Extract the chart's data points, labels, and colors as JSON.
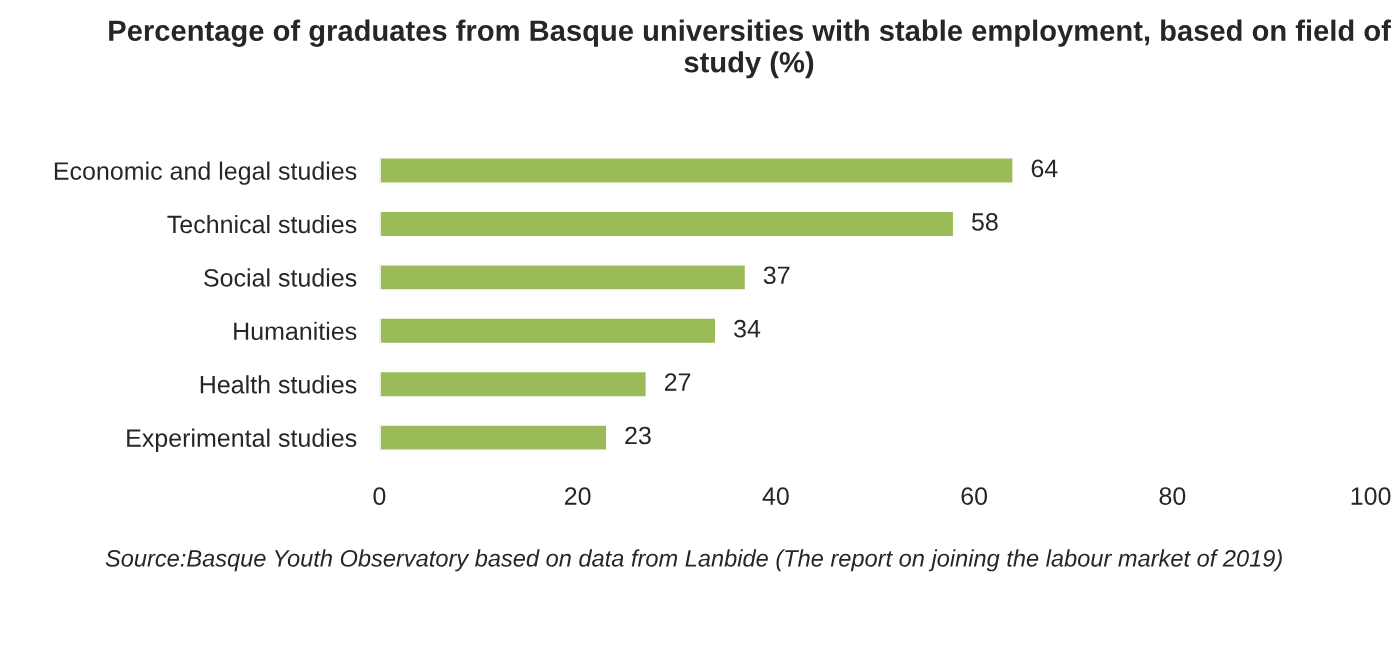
{
  "chart_data": {
    "type": "bar",
    "orientation": "horizontal",
    "title": "Percentage of graduates from Basque universities with stable employment, based on field of study (%)",
    "categories": [
      "Economic and legal studies",
      "Technical studies",
      "Social studies",
      "Humanities",
      "Health studies",
      "Experimental studies"
    ],
    "values": [
      64,
      58,
      37,
      34,
      27,
      23
    ],
    "color": "#9bbb59",
    "xlim": [
      0,
      100
    ],
    "xticks": [
      0,
      20,
      40,
      60,
      80,
      100
    ],
    "data_labels": true,
    "grid": false,
    "legend": false,
    "annotations": [
      "Source:Basque Youth Observatory based on data from Lanbide (The report on joining the labour market of 2019)"
    ]
  }
}
